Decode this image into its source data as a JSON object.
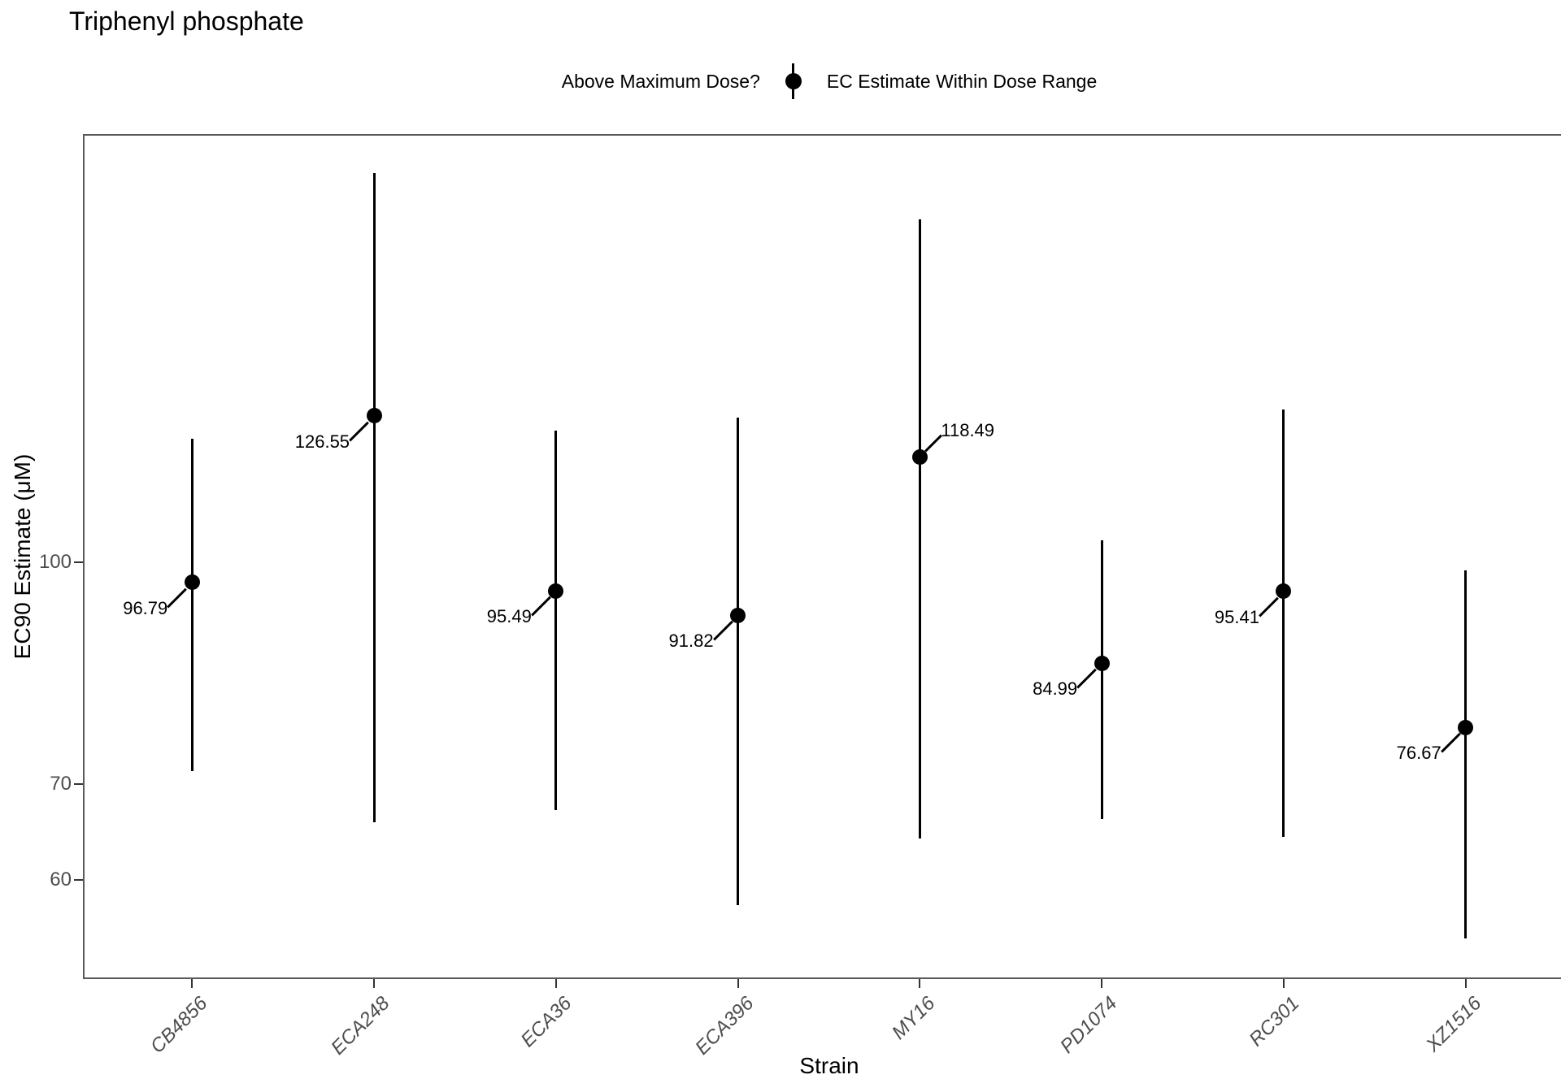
{
  "title": "Triphenyl phosphate",
  "legend": {
    "title": "Above Maximum Dose?",
    "items": [
      {
        "label": "EC Estimate Within Dose Range",
        "symbol": "pointrange-icon",
        "color": "#000000"
      }
    ]
  },
  "axes": {
    "x": {
      "title": "Strain"
    },
    "y": {
      "title": "EC90 Estimate (μM)",
      "tick_values": [
        100,
        70,
        60
      ],
      "tick_labels": [
        "100",
        "70",
        "60"
      ],
      "scale": "log10"
    }
  },
  "chart_data": {
    "type": "pointrange",
    "title": "Triphenyl phosphate",
    "xlabel": "Strain",
    "ylabel": "EC90 Estimate (μM)",
    "categories": [
      "CB4856",
      "ECA248",
      "ECA36",
      "ECA396",
      "MY16",
      "PD1074",
      "RC301",
      "XZ1516"
    ],
    "series": [
      {
        "name": "EC Estimate Within Dose Range",
        "values": [
          96.79,
          126.55,
          95.49,
          91.82,
          118.49,
          84.99,
          95.41,
          76.67
        ],
        "ymin_est": [
          71.5,
          65.8,
          67.1,
          57.6,
          64.1,
          66.2,
          64.3,
          54.6
        ],
        "ymax_est": [
          122.0,
          186.9,
          123.6,
          126.2,
          173.6,
          103.6,
          127.9,
          98.7
        ],
        "point_labels": [
          "96.79",
          "126.55",
          "95.49",
          "91.82",
          "118.49",
          "84.99",
          "95.41",
          "76.67"
        ],
        "label_side": [
          "lower-left",
          "lower-left",
          "lower-left",
          "lower-left",
          "upper-right",
          "lower-left",
          "lower-left",
          "lower-left"
        ]
      }
    ],
    "yscale": "log10",
    "ylim": [
      51,
      200
    ],
    "ytick_values": [
      100,
      70,
      60
    ],
    "grid": false,
    "legend_position": "top",
    "colors": {
      "data": "#000000",
      "axis_text": "#4d4d4d",
      "panel_border": "#5a5a5a",
      "tick_marks": "#333333"
    }
  }
}
